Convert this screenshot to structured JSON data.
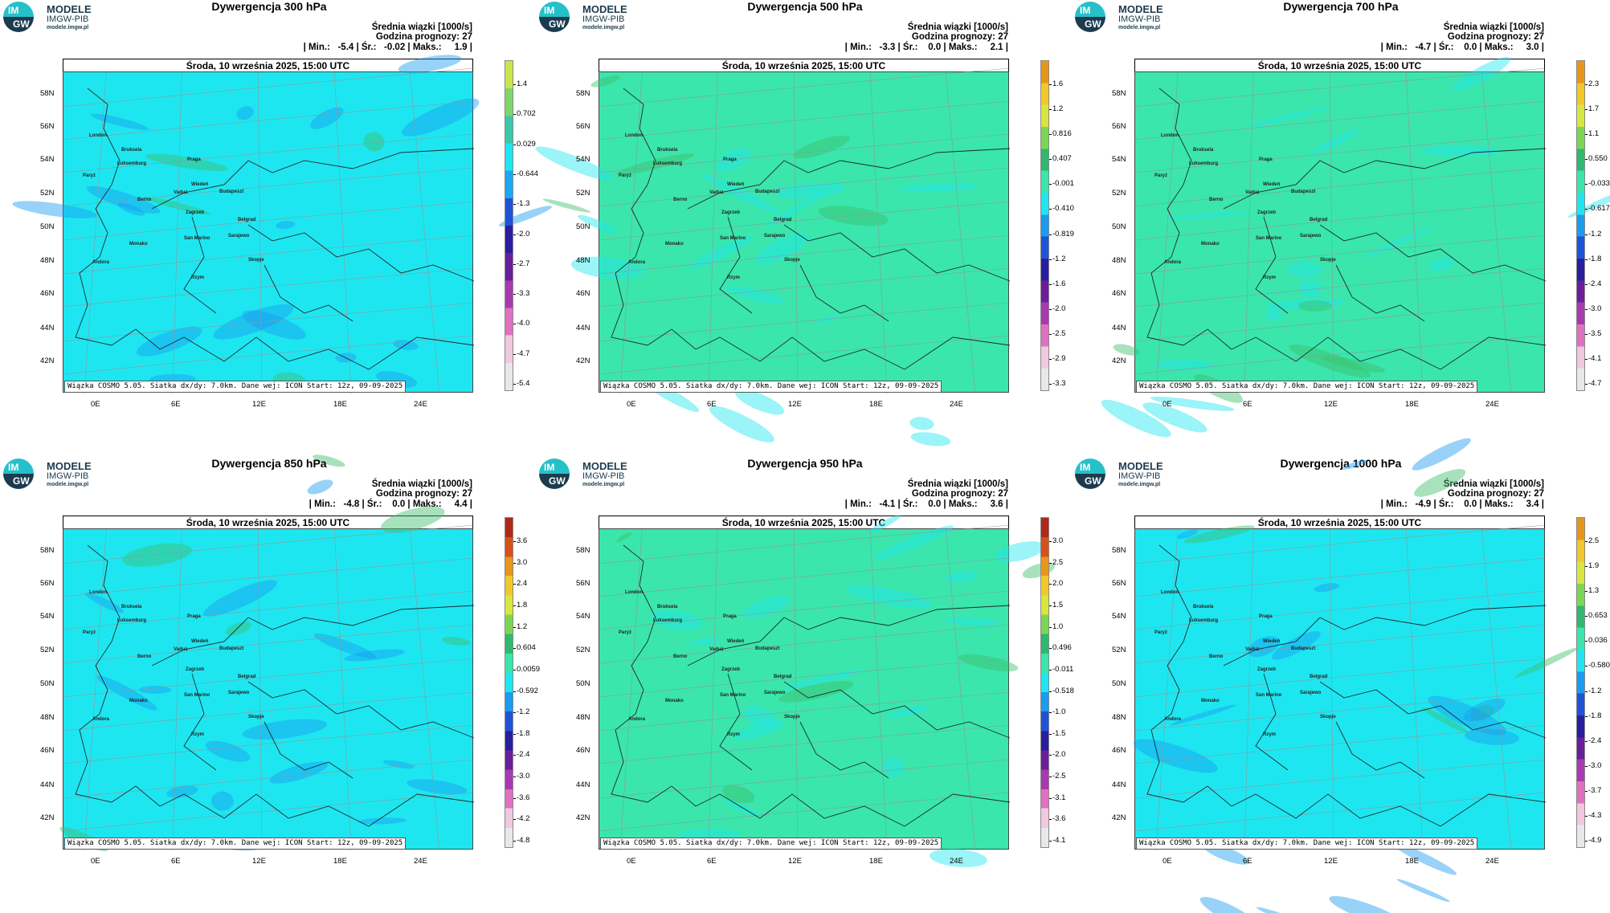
{
  "logo": {
    "line1": "MODELE",
    "line2": "IMGW-PIB",
    "line3": "modele.imgw.pl",
    "mark_top": "IM",
    "mark_bottom": "GW"
  },
  "common": {
    "date": "Środa, 10 września 2025, 15:00 UTC",
    "mean_label": "Średnia wiązki [1000/s]",
    "forecast_hour": "Godzina prognozy: 27",
    "credit": "Wiązka COSMO 5.05. Siatka dx/dy: 7.0km. Dane wej: ICON Start: 12z, 09-09-2025",
    "lat_labels": [
      "58N",
      "56N",
      "54N",
      "52N",
      "50N",
      "48N",
      "46N",
      "44N",
      "42N"
    ],
    "lon_labels": [
      "0E",
      "6E",
      "12E",
      "18E",
      "24E"
    ],
    "colors": {
      "cyan": "#1ee6f0",
      "green": "#3ae6ac",
      "blue": "#1a9cf0",
      "borders": "#1e2a30"
    }
  },
  "panels": [
    {
      "title": "Dywergencja 300 hPa",
      "stats": "| Min.:   -5.4 | Śr.:   -0.02 | Maks.:     1.9 |",
      "base": "cyan",
      "colorbar": {
        "labels": [
          "1.4",
          "0.702",
          "0.029",
          "-0.644",
          "-1.3",
          "-2.0",
          "-2.7",
          "-3.3",
          "-4.0",
          "-4.7",
          "-5.4"
        ],
        "colors": [
          "#c8e64a",
          "#7fd66a",
          "#3ac8a8",
          "#1ee6f0",
          "#1aa8f0",
          "#1e52d8",
          "#2a1ea0",
          "#6a1e9a",
          "#a83ab0",
          "#e070c0",
          "#f0c8e0",
          "#e8e8e8"
        ]
      }
    },
    {
      "title": "Dywergencja 500 hPa",
      "stats": "| Min.:   -3.3 | Śr.:    0.0 | Maks.:     2.1 |",
      "base": "green",
      "colorbar": {
        "labels": [
          "1.6",
          "1.2",
          "0.816",
          "0.407",
          "-0.001",
          "-0.410",
          "-0.819",
          "-1.2",
          "-1.6",
          "-2.0",
          "-2.5",
          "-2.9",
          "-3.3"
        ],
        "colors": [
          "#e8961a",
          "#f0c828",
          "#d8e640",
          "#7cd654",
          "#30b870",
          "#3ae6ac",
          "#1ee6f0",
          "#1a9cf0",
          "#1e52d8",
          "#2a1ea0",
          "#6a1e9a",
          "#a83ab0",
          "#e070c0",
          "#f0c8e0",
          "#e8e8e8"
        ]
      }
    },
    {
      "title": "Dywergencja 700 hPa",
      "stats": "| Min.:   -4.7 | Śr.:    0.0 | Maks.:     3.0 |",
      "base": "green",
      "colorbar": {
        "labels": [
          "2.3",
          "1.7",
          "1.1",
          "0.550",
          "-0.033",
          "-0.617",
          "-1.2",
          "-1.8",
          "-2.4",
          "-3.0",
          "-3.5",
          "-4.1",
          "-4.7"
        ],
        "colors": [
          "#e8961a",
          "#f0c828",
          "#d8e640",
          "#7cd654",
          "#30b870",
          "#3ae6ac",
          "#1ee6f0",
          "#1a9cf0",
          "#1e52d8",
          "#2a1ea0",
          "#6a1e9a",
          "#a83ab0",
          "#e070c0",
          "#f0c8e0",
          "#e8e8e8"
        ]
      }
    },
    {
      "title": "Dywergencja 850 hPa",
      "stats": "| Min.:   -4.8 | Śr.:    0.0 | Maks.:     4.4 |",
      "base": "cyan",
      "colorbar": {
        "labels": [
          "3.6",
          "3.0",
          "2.4",
          "1.8",
          "1.2",
          "0.604",
          "0.0059",
          "-0.592",
          "-1.2",
          "-1.8",
          "-2.4",
          "-3.0",
          "-3.6",
          "-4.2",
          "-4.8"
        ],
        "colors": [
          "#b02818",
          "#d8501a",
          "#e8961a",
          "#f0c828",
          "#d8e640",
          "#7cd654",
          "#30b870",
          "#3ae6ac",
          "#1ee6f0",
          "#1a9cf0",
          "#1e52d8",
          "#2a1ea0",
          "#6a1e9a",
          "#a83ab0",
          "#e070c0",
          "#f0c8e0",
          "#e8e8e8"
        ]
      }
    },
    {
      "title": "Dywergencja 950 hPa",
      "stats": "| Min.:   -4.1 | Śr.:    0.0 | Maks.:     3.6 |",
      "base": "green",
      "colorbar": {
        "labels": [
          "3.0",
          "2.5",
          "2.0",
          "1.5",
          "1.0",
          "0.496",
          "-0.011",
          "-0.518",
          "-1.0",
          "-1.5",
          "-2.0",
          "-2.5",
          "-3.1",
          "-3.6",
          "-4.1"
        ],
        "colors": [
          "#b02818",
          "#d8501a",
          "#e8961a",
          "#f0c828",
          "#d8e640",
          "#7cd654",
          "#30b870",
          "#3ae6ac",
          "#1ee6f0",
          "#1a9cf0",
          "#1e52d8",
          "#2a1ea0",
          "#6a1e9a",
          "#a83ab0",
          "#e070c0",
          "#f0c8e0",
          "#e8e8e8"
        ]
      }
    },
    {
      "title": "Dywergencja 1000 hPa",
      "stats": "| Min.:   -4.9 | Śr.:    0.0 | Maks.:     3.4 |",
      "base": "cyan",
      "colorbar": {
        "labels": [
          "2.5",
          "1.9",
          "1.3",
          "0.653",
          "0.036",
          "-0.580",
          "-1.2",
          "-1.8",
          "-2.4",
          "-3.0",
          "-3.7",
          "-4.3",
          "-4.9"
        ],
        "colors": [
          "#e8961a",
          "#f0c828",
          "#d8e640",
          "#7cd654",
          "#30b870",
          "#3ae6ac",
          "#1ee6f0",
          "#1a9cf0",
          "#1e52d8",
          "#2a1ea0",
          "#6a1e9a",
          "#a83ab0",
          "#e070c0",
          "#f0c8e0",
          "#e8e8e8"
        ]
      }
    }
  ],
  "cities": [
    "London",
    "Bruksela",
    "Paryż",
    "Luksemburg",
    "Praga",
    "Wiedeń",
    "Budapeszt",
    "Berno",
    "Vaduz",
    "Zagrzeb",
    "Belgrad",
    "San Marino",
    "Sarajewo",
    "Monako",
    "Andora",
    "Skopje",
    "Rzym"
  ]
}
